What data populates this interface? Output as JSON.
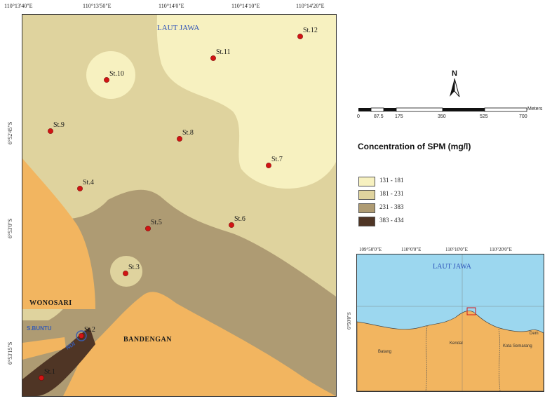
{
  "main_map": {
    "top_coords": [
      "110°13'40\"E",
      "110°13'50\"E",
      "110°14'0\"E",
      "110°14'10\"E",
      "110°14'20\"E"
    ],
    "left_coords": [
      "6°52'45\"S",
      "6°53'0\"S",
      "6°53'15\"S"
    ],
    "sea_label": "LAUT JAWA",
    "places": {
      "wonosari": "WONOSARI",
      "bandengan": "BANDENGAN",
      "river_1": "S.BUNTU",
      "river_2": "NDI"
    },
    "stations": [
      {
        "id": "st1",
        "label": "St.1",
        "spm_class": "383 - 434"
      },
      {
        "id": "st2",
        "label": "St.2",
        "spm_class": "383 - 434"
      },
      {
        "id": "st3",
        "label": "St.3",
        "spm_class": "181 - 231"
      },
      {
        "id": "st4",
        "label": "St.4",
        "spm_class": "181 - 231"
      },
      {
        "id": "st5",
        "label": "St.5",
        "spm_class": "231 - 383"
      },
      {
        "id": "st6",
        "label": "St.6",
        "spm_class": "181 - 231"
      },
      {
        "id": "st7",
        "label": "St.7",
        "spm_class": "131 - 181"
      },
      {
        "id": "st8",
        "label": "St.8",
        "spm_class": "181 - 231"
      },
      {
        "id": "st9",
        "label": "St.9",
        "spm_class": "181 - 231"
      },
      {
        "id": "st10",
        "label": "St.10",
        "spm_class": "131 - 181"
      },
      {
        "id": "st11",
        "label": "St.11",
        "spm_class": "131 - 181"
      },
      {
        "id": "st12",
        "label": "St.12",
        "spm_class": "131 - 181"
      }
    ]
  },
  "north_arrow": "N",
  "scale_bar": {
    "unit": "Meters",
    "ticks": [
      "0",
      "87.5",
      "175",
      "350",
      "525",
      "700"
    ]
  },
  "legend": {
    "title": "Concentration of SPM (mg/l)",
    "classes": [
      {
        "label": "131 - 181",
        "color": "#f7f1c0"
      },
      {
        "label": "181 - 231",
        "color": "#dfd39e"
      },
      {
        "label": "231 - 383",
        "color": "#ae9b73"
      },
      {
        "label": "383 - 434",
        "color": "#4f3525"
      }
    ]
  },
  "colors": {
    "land": "#f2b560",
    "station_marker": "#d11414",
    "inset_sea": "#9cd7ef"
  },
  "inset_map": {
    "top_coords": [
      "109°50'0\"E",
      "110°0'0\"E",
      "110°10'0\"E",
      "110°20'0\"E"
    ],
    "left_coords": [
      "6°50'0\"S"
    ],
    "sea_label": "LAUT JAWA",
    "regions": [
      "Batang",
      "Kendal",
      "Kota Semarang",
      "Dem"
    ]
  }
}
